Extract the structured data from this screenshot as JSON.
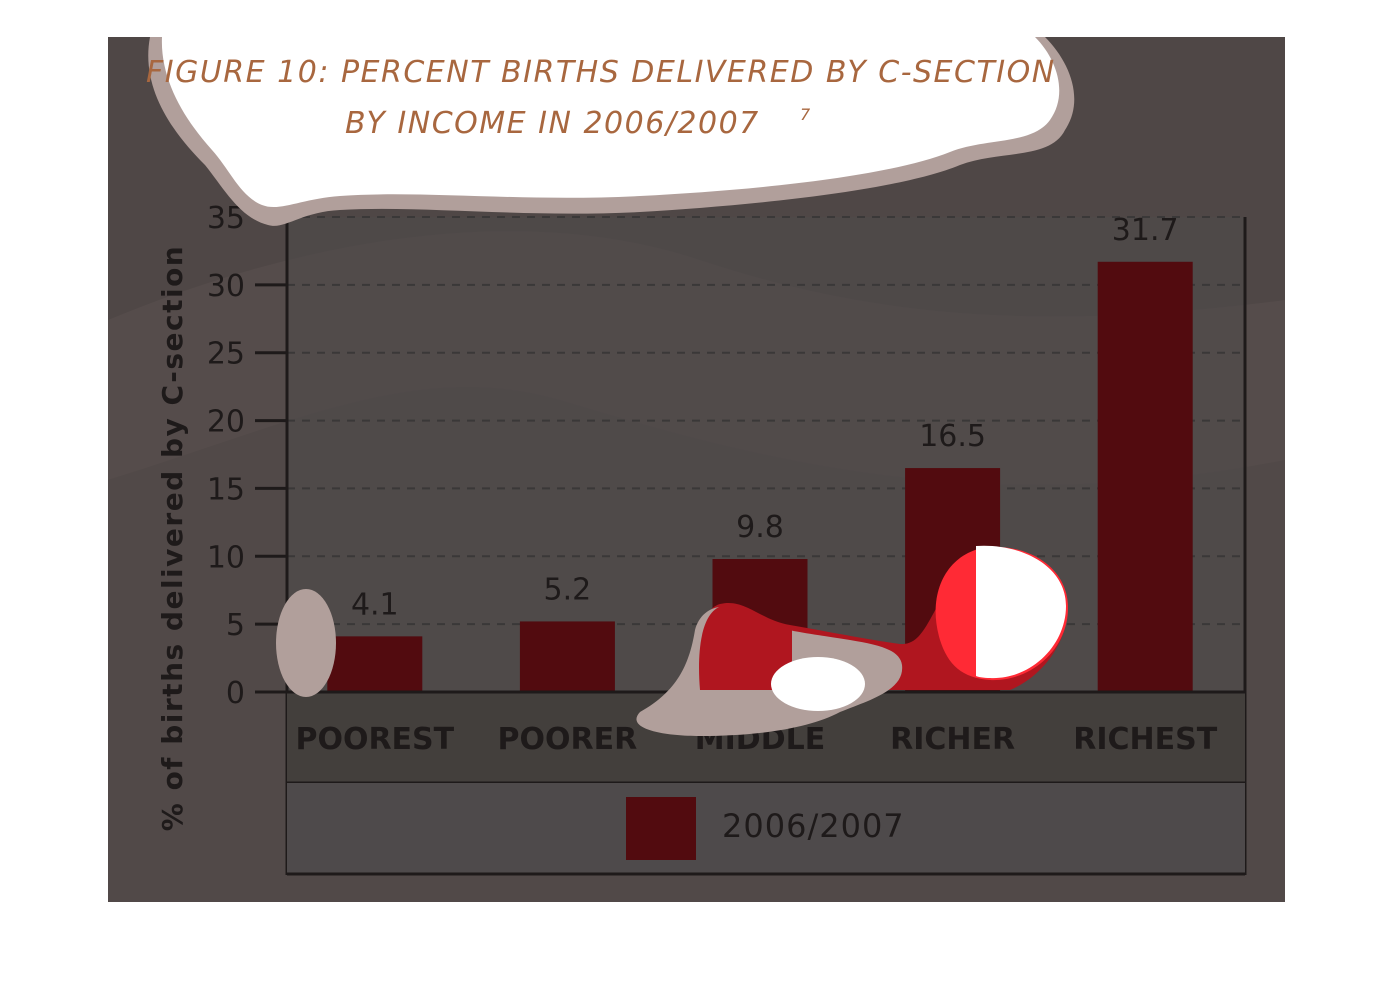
{
  "figure": {
    "title_line1": "FIGURE 10: PERCENT BIRTHS DELIVERED BY C-SECTION",
    "title_line2": "BY INCOME IN 2006/2007",
    "footnote_marker": "7"
  },
  "colors": {
    "background": "#4f4746",
    "wave": "#554c4b",
    "plot_area": "#4e4a4b",
    "category_band": "#433f3c",
    "bar": "#520b0f",
    "bar_highlight": "#b0161f",
    "bar_bright": "#ff2a35",
    "title": "#a8673f",
    "axis": "#1e1a1a",
    "text": "#1e1a1a",
    "gridline": "#3a3838",
    "cloud": "#ffffff",
    "cloud_edge": "#b19f9b"
  },
  "chart_data": {
    "type": "bar",
    "categories": [
      "POOREST",
      "POORER",
      "MIDDLE",
      "RICHER",
      "RICHEST"
    ],
    "series": [
      {
        "name": "2006/2007",
        "values": [
          4.1,
          5.2,
          9.8,
          16.5,
          31.7
        ]
      }
    ],
    "value_labels": [
      "4.1",
      "5.2",
      "9.8",
      "16.5",
      "31.7"
    ],
    "ylabel": "% of births delivered by C-section",
    "ylim": [
      0,
      35
    ],
    "yticks": [
      0,
      5,
      10,
      15,
      20,
      25,
      30,
      35
    ],
    "grid": true,
    "legend": "bottom"
  }
}
